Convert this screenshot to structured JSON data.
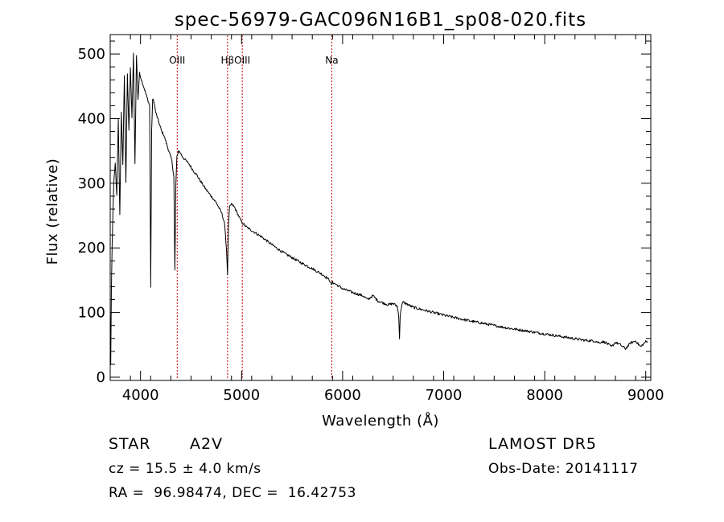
{
  "chart_data": {
    "type": "line",
    "title": "spec-56979-GAC096N16B1_sp08-020.fits",
    "xlabel": "Wavelength (Å)",
    "ylabel": "Flux (relative)",
    "xlim": [
      3700,
      9050
    ],
    "ylim": [
      -5,
      530
    ],
    "x_ticks": [
      4000,
      5000,
      6000,
      7000,
      8000,
      9000
    ],
    "y_ticks": [
      0,
      100,
      200,
      300,
      400,
      500
    ],
    "grid": false,
    "line_color": "#000000",
    "marker_color": "#cc0000",
    "spectrum_anchors": {
      "x": [
        3700,
        3705,
        3712,
        3720,
        3735,
        3750,
        3765,
        3780,
        3795,
        3810,
        3825,
        3840,
        3855,
        3870,
        3885,
        3900,
        3915,
        3930,
        3945,
        3960,
        3975,
        3990,
        4010,
        4030,
        4050,
        4070,
        4090,
        4101,
        4110,
        4120,
        4135,
        4150,
        4170,
        4190,
        4210,
        4230,
        4250,
        4270,
        4290,
        4310,
        4330,
        4340,
        4350,
        4360,
        4375,
        4390,
        4420,
        4450,
        4480,
        4520,
        4560,
        4600,
        4650,
        4700,
        4750,
        4800,
        4830,
        4850,
        4861,
        4870,
        4880,
        4900,
        4930,
        4960,
        5000,
        5050,
        5100,
        5150,
        5200,
        5300,
        5400,
        5500,
        5600,
        5700,
        5800,
        5850,
        5880,
        5890,
        5900,
        5920,
        6000,
        6100,
        6200,
        6250,
        6280,
        6300,
        6350,
        6400,
        6450,
        6500,
        6540,
        6555,
        6563,
        6570,
        6585,
        6600,
        6650,
        6700,
        6800,
        7000,
        7200,
        7400,
        7600,
        7800,
        8000,
        8200,
        8400,
        8500,
        8542,
        8560,
        8600,
        8662,
        8700,
        8750,
        8800,
        8850,
        8900,
        8950,
        9000,
        9020
      ],
      "y": [
        100,
        20,
        140,
        210,
        300,
        330,
        280,
        400,
        250,
        410,
        330,
        465,
        300,
        470,
        380,
        480,
        400,
        500,
        330,
        498,
        430,
        470,
        460,
        450,
        440,
        430,
        420,
        140,
        380,
        430,
        425,
        410,
        400,
        390,
        380,
        375,
        365,
        355,
        345,
        335,
        310,
        165,
        300,
        340,
        350,
        348,
        340,
        335,
        330,
        320,
        312,
        302,
        290,
        280,
        270,
        255,
        240,
        200,
        160,
        230,
        262,
        268,
        263,
        253,
        240,
        232,
        227,
        222,
        217,
        205,
        194,
        185,
        176,
        168,
        159,
        153,
        148,
        142,
        147,
        145,
        137,
        131,
        126,
        120,
        124,
        126,
        118,
        115,
        112,
        114,
        110,
        96,
        60,
        95,
        112,
        116,
        112,
        108,
        104,
        96,
        89,
        83,
        77,
        72,
        67,
        62,
        57,
        56,
        53,
        55,
        54,
        47,
        54,
        50,
        44,
        53,
        56,
        47,
        55,
        54
      ],
      "noise": 2.0
    },
    "lines": [
      {
        "label": "Hβ",
        "row": 1,
        "x": 4861
      },
      {
        "label": "OIII",
        "row": 1,
        "x": 4363
      },
      {
        "label": "Na",
        "row": 1,
        "x": 5893
      },
      {
        "label": "OIII",
        "row": 1,
        "x": 5007
      }
    ]
  },
  "labels": {
    "object_class": "STAR",
    "subclass": "A2V",
    "survey": "LAMOST DR5",
    "cz": "cz = 15.5 ± 4.0 km/s",
    "obs_date": "Obs-Date: 20141117",
    "radec": "RA =  96.98474, DEC =  16.42753"
  }
}
